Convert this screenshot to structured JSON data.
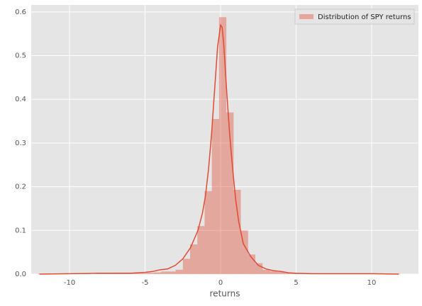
{
  "chart_data": {
    "type": "histogram",
    "xlabel": "returns",
    "bins": [
      -12.1,
      -11.62,
      -11.14,
      -10.66,
      -10.18,
      -9.7,
      -9.22,
      -8.74,
      -8.26,
      -7.78,
      -7.3,
      -6.82,
      -6.34,
      -5.86,
      -5.38,
      -4.9,
      -4.42,
      -3.94,
      -3.46,
      -2.98,
      -2.5,
      -2.02,
      -1.54,
      -1.06,
      -0.58,
      -0.1,
      0.38,
      0.86,
      1.34,
      1.82,
      2.3,
      2.78,
      3.26,
      3.74,
      4.22,
      4.7,
      5.18,
      5.66,
      6.14,
      6.62,
      7.1,
      7.58,
      8.06,
      8.54,
      9.02,
      9.5,
      9.98,
      10.46,
      10.94,
      11.42,
      11.9
    ],
    "series": [
      {
        "name": "Distribution of SPY returns",
        "color": "#e24a33",
        "values": [
          0.001,
          0,
          0,
          0.001,
          0,
          0,
          0.001,
          0,
          0.001,
          0.001,
          0.001,
          0.001,
          0.002,
          0.002,
          0.002,
          0.003,
          0.004,
          0.006,
          0.006,
          0.01,
          0.035,
          0.068,
          0.11,
          0.19,
          0.355,
          0.588,
          0.37,
          0.193,
          0.1,
          0.045,
          0.025,
          0.01,
          0.007,
          0.005,
          0.003,
          0.002,
          0.001,
          0.001,
          0.001,
          0,
          0.001,
          0,
          0.001,
          0,
          0,
          0.001,
          0,
          0.001,
          0,
          0.001
        ]
      }
    ],
    "kde": {
      "color": "#e24a33",
      "x": [
        -12,
        -10,
        -8,
        -6,
        -5,
        -4.5,
        -4,
        -3.5,
        -3,
        -2.5,
        -2,
        -1.5,
        -1.2,
        -1,
        -0.8,
        -0.6,
        -0.4,
        -0.2,
        0,
        0.1,
        0.2,
        0.4,
        0.6,
        0.8,
        1,
        1.2,
        1.5,
        2,
        2.5,
        3,
        3.5,
        4,
        4.5,
        5,
        6,
        8,
        10,
        11.8
      ],
      "values": [
        0,
        0.001,
        0.002,
        0.002,
        0.004,
        0.006,
        0.01,
        0.012,
        0.02,
        0.035,
        0.06,
        0.1,
        0.14,
        0.18,
        0.24,
        0.32,
        0.42,
        0.52,
        0.57,
        0.565,
        0.53,
        0.42,
        0.32,
        0.24,
        0.17,
        0.12,
        0.07,
        0.04,
        0.02,
        0.012,
        0.008,
        0.006,
        0.003,
        0.002,
        0.001,
        0.001,
        0.001,
        0
      ]
    },
    "xlim": [
      -12.54,
      13.1
    ],
    "ylim": [
      0,
      0.616
    ],
    "xticks": [
      -10,
      -5,
      0,
      5,
      10
    ],
    "yticks": [
      {
        "value": 0,
        "label": "0.0"
      },
      0.1,
      0.2,
      0.3,
      0.4,
      0.5,
      0.6
    ],
    "grid": true,
    "legend": "upper right"
  }
}
